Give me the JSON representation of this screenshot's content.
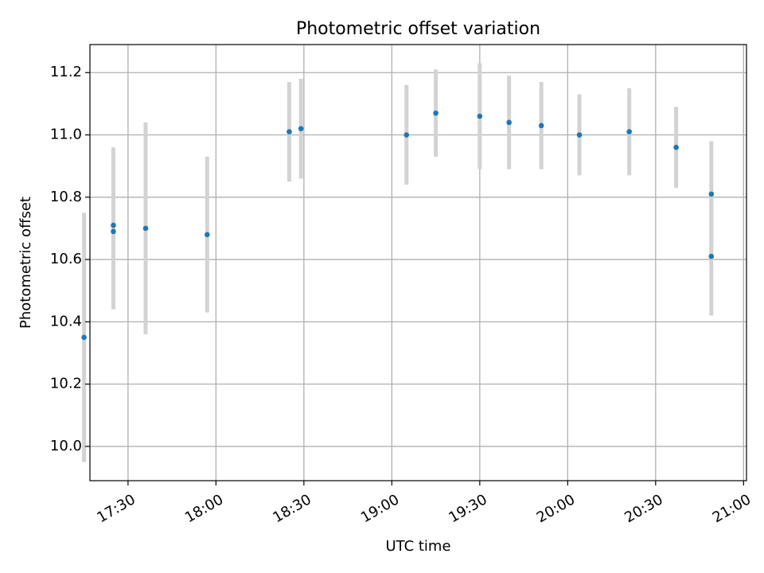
{
  "chart_data": {
    "type": "scatter",
    "title": "Photometric offset variation",
    "xlabel": "UTC time",
    "ylabel": "Photometric offset",
    "x_unit": "UTC HH:MM",
    "xlim": [
      "17:17",
      "21:01"
    ],
    "ylim": [
      9.89,
      11.29
    ],
    "x_ticks": [
      "17:30",
      "18:00",
      "18:30",
      "19:00",
      "19:30",
      "20:00",
      "20:30",
      "21:00"
    ],
    "y_ticks": [
      10.0,
      10.2,
      10.4,
      10.6,
      10.8,
      11.0,
      11.2
    ],
    "grid": true,
    "colors": {
      "points": "#1f77b4",
      "errorbars": "#d3d3d3",
      "grid": "#b0b0b0"
    },
    "points": [
      {
        "x": "17:15",
        "y": 10.35,
        "yerr": 0.4
      },
      {
        "x": "17:25",
        "y": 10.69,
        "yerr": 0.25
      },
      {
        "x": "17:25",
        "y": 10.71,
        "yerr": 0.25
      },
      {
        "x": "17:36",
        "y": 10.7,
        "yerr": 0.34
      },
      {
        "x": "17:57",
        "y": 10.68,
        "yerr": 0.25
      },
      {
        "x": "18:25",
        "y": 11.01,
        "yerr": 0.16
      },
      {
        "x": "18:29",
        "y": 11.02,
        "yerr": 0.16
      },
      {
        "x": "19:05",
        "y": 11.0,
        "yerr": 0.16
      },
      {
        "x": "19:15",
        "y": 11.07,
        "yerr": 0.14
      },
      {
        "x": "19:30",
        "y": 11.06,
        "yerr": 0.17
      },
      {
        "x": "19:40",
        "y": 11.04,
        "yerr": 0.15
      },
      {
        "x": "19:51",
        "y": 11.03,
        "yerr": 0.14
      },
      {
        "x": "20:04",
        "y": 11.0,
        "yerr": 0.13
      },
      {
        "x": "20:21",
        "y": 11.01,
        "yerr": 0.14
      },
      {
        "x": "20:37",
        "y": 10.96,
        "yerr": 0.13
      },
      {
        "x": "20:49",
        "y": 10.81,
        "yerr": 0.17
      },
      {
        "x": "20:49",
        "y": 10.61,
        "yerr": 0.19
      }
    ]
  }
}
